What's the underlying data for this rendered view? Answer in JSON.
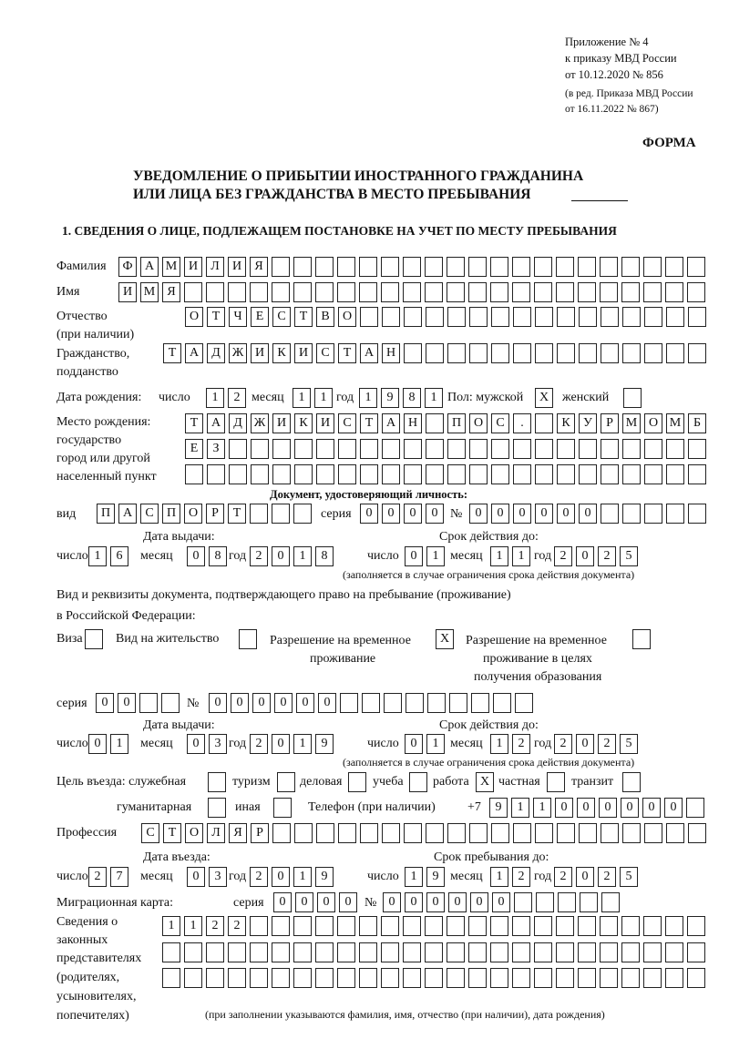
{
  "header": {
    "appendix_line1": "Приложение № 4",
    "appendix_line2": "к приказу МВД России",
    "appendix_line3": "от 10.12.2020 № 856",
    "edition_line1": "(в ред. Приказа МВД России",
    "edition_line2": "от 16.11.2022 № 867)",
    "form_label": "ФОРМА",
    "title_line1": "УВЕДОМЛЕНИЕ О ПРИБЫТИИ ИНОСТРАННОГО ГРАЖДАНИНА",
    "title_line2": "ИЛИ ЛИЦА БЕЗ ГРАЖДАНСТВА В МЕСТО ПРЕБЫВАНИЯ",
    "section1_title": "1. СВЕДЕНИЯ О ЛИЦЕ, ПОДЛЕЖАЩЕМ ПОСТАНОВКЕ НА УЧЕТ ПО МЕСТУ ПРЕБЫВАНИЯ"
  },
  "labels": {
    "surname": "Фамилия",
    "name": "Имя",
    "patronymic1": "Отчество",
    "patronymic2": "(при наличии)",
    "citizenship1": "Гражданство,",
    "citizenship2": "подданство",
    "birth_date": "Дата рождения:",
    "day": "число",
    "month": "месяц",
    "year": "год",
    "sex": "Пол: мужской",
    "female": "женский",
    "birthplace1": "Место рождения:",
    "birthplace2": "государство",
    "birthplace3": "город или другой",
    "birthplace4": "населенный пункт",
    "id_doc": "Документ, удостоверяющий личность:",
    "kind": "вид",
    "series": "серия",
    "number": "№",
    "issue_date": "Дата выдачи:",
    "valid_until": "Срок действия до:",
    "valid_note": "(заполняется в случае ограничения срока действия документа)",
    "right_doc1": "Вид и реквизиты документа, подтверждающего право на пребывание (проживание)",
    "right_doc2": "в Российской Федерации:",
    "visa": "Виза",
    "residence_permit": "Вид на жительство",
    "temp_res1": "Разрешение на временное",
    "temp_res2": "проживание",
    "temp_edu1": "Разрешение на временное",
    "temp_edu2": "проживание в целях",
    "temp_edu3": "получения образования",
    "purpose": "Цель въезда: служебная",
    "tourism": "туризм",
    "business": "деловая",
    "study": "учеба",
    "work": "работа",
    "private": "частная",
    "transit": "транзит",
    "humanitarian": "гуманитарная",
    "other": "иная",
    "phone": "Телефон (при наличии)",
    "phone_prefix": "+7",
    "profession": "Профессия",
    "entry_date": "Дата въезда:",
    "stay_until": "Срок пребывания до:",
    "migration_card": "Миграционная карта:",
    "reps1": "Сведения о",
    "reps2": "законных",
    "reps3": "представителях",
    "reps4": "(родителях,",
    "reps5": "усыновителях,",
    "reps6": "попечителях)",
    "reps_note": "(при заполнении указываются фамилия, имя, отчество (при наличии), дата рождения)"
  },
  "person": {
    "surname": "ФАМИЛИЯ",
    "name": "ИМЯ",
    "patronymic": "ОТЧЕСТВО",
    "citizenship": "ТАДЖИКИСТАН",
    "birth_day": "12",
    "birth_month": "11",
    "birth_year": "1981",
    "sex_male": "X",
    "sex_female": "",
    "birthplace_row1": "ТАДЖИКИСТАН ПОС. КУРМОМБ",
    "birthplace_row2": "ЕЗ",
    "birthplace_row3": ""
  },
  "id_document": {
    "kind": "ПАСПОРТ",
    "series": "0000",
    "number": "000000",
    "issue_day": "16",
    "issue_month": "08",
    "issue_year": "2018",
    "valid_day": "01",
    "valid_month": "11",
    "valid_year": "2025"
  },
  "right_document": {
    "visa": "",
    "residence_permit": "",
    "temp_residence": "X",
    "temp_residence_edu": "",
    "series": "00",
    "number": "000000",
    "issue_day": "01",
    "issue_month": "03",
    "issue_year": "2019",
    "valid_day": "01",
    "valid_month": "12",
    "valid_year": "2025"
  },
  "purpose": {
    "official": "",
    "tourism": "",
    "business": "",
    "study": "",
    "work": "X",
    "private": "",
    "transit": "",
    "humanitarian": "",
    "other": ""
  },
  "phone": "911000000",
  "profession": "СТОЛЯР",
  "entry": {
    "entry_day": "27",
    "entry_month": "03",
    "entry_year": "2019",
    "stay_day": "19",
    "stay_month": "12",
    "stay_year": "2025"
  },
  "migration_card": {
    "series": "0000",
    "number": "000000"
  },
  "representatives": {
    "row1": "1122",
    "row2": "",
    "row3": ""
  }
}
